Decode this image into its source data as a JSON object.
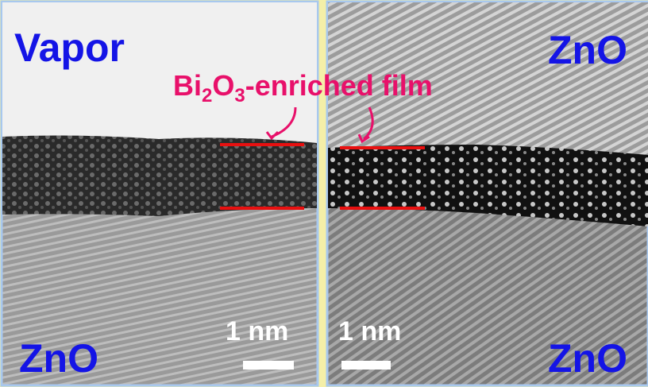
{
  "left_panel": {
    "top_label": "Vapor",
    "bottom_label": "ZnO",
    "scale_bar": "1 nm"
  },
  "right_panel": {
    "top_label": "ZnO",
    "bottom_label": "ZnO",
    "scale_bar": "1 nm"
  },
  "film_label": {
    "parts": [
      "Bi",
      "2",
      "O",
      "3",
      "-enriched film"
    ]
  }
}
